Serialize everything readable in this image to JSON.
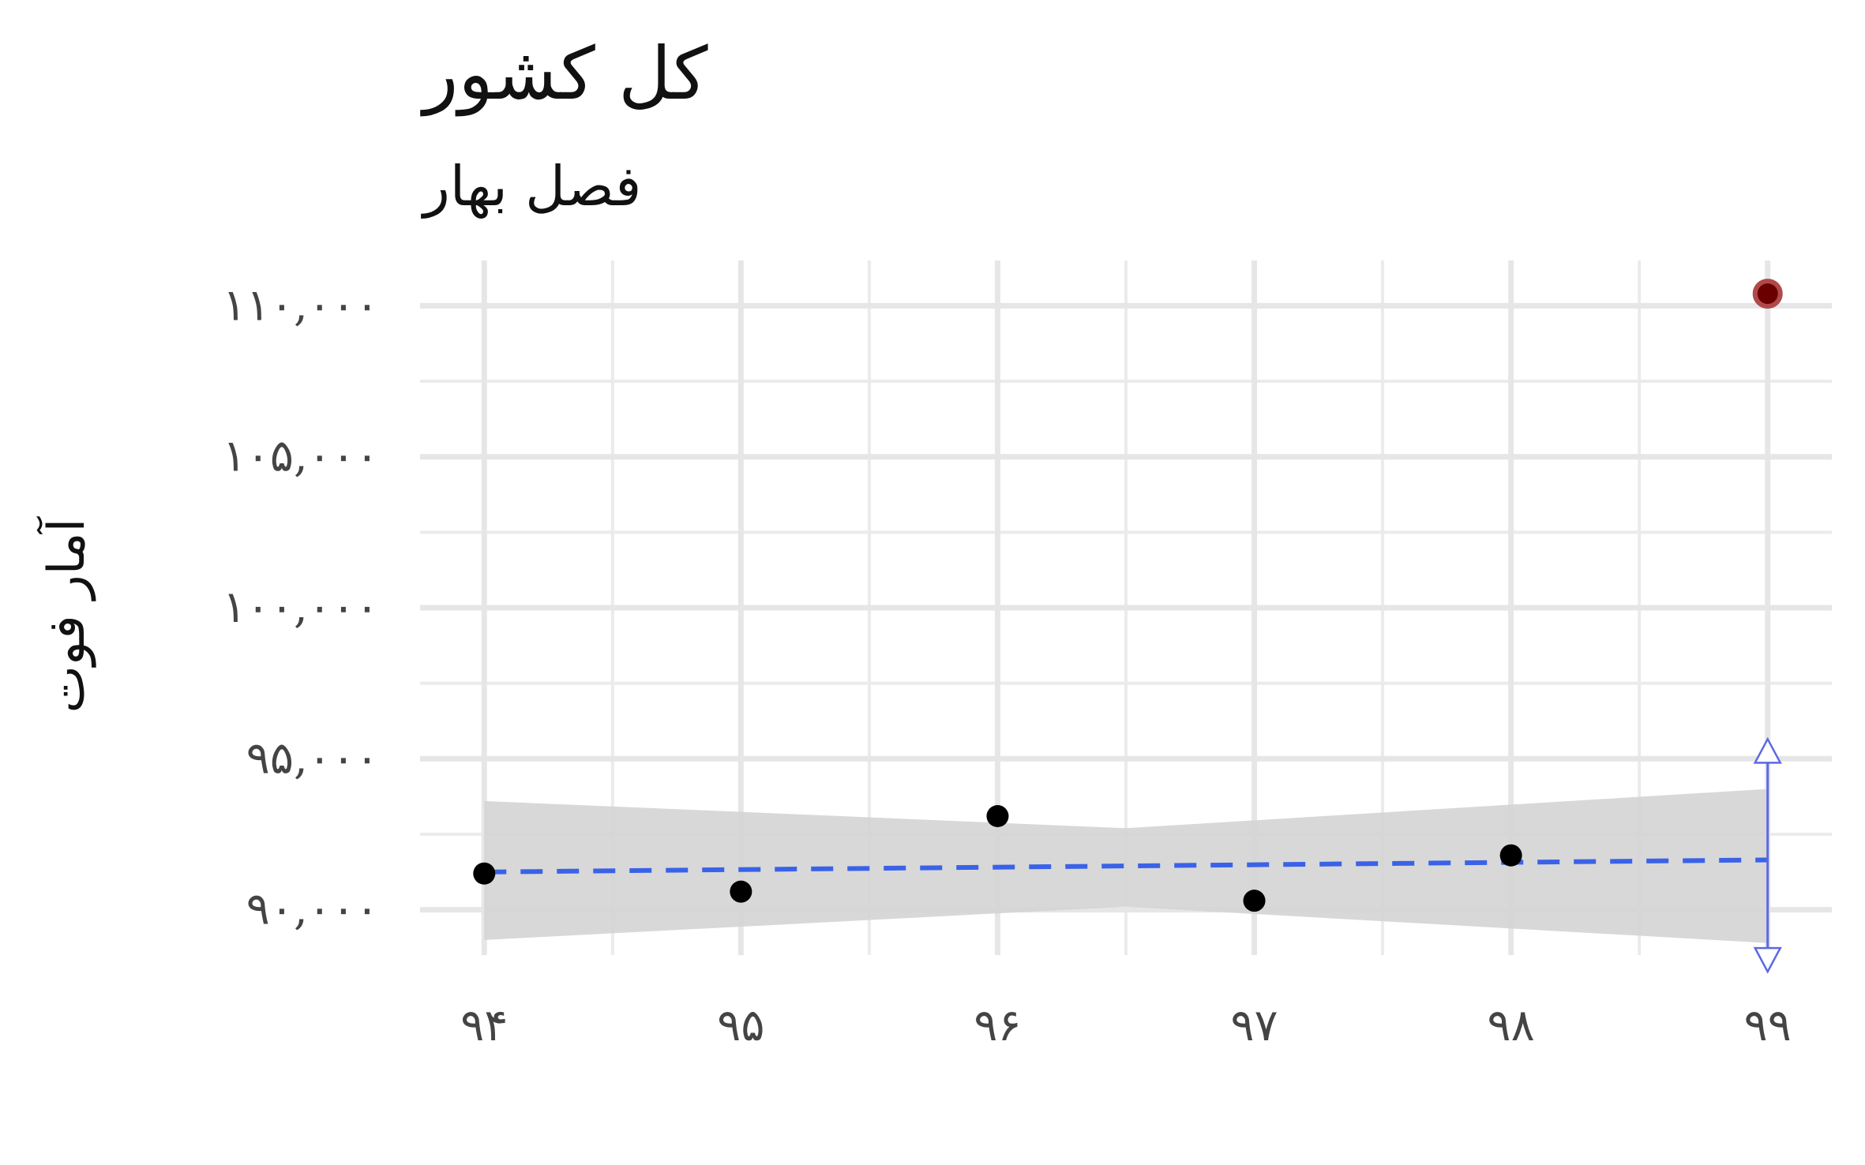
{
  "chart_data": {
    "type": "scatter",
    "title": "کل کشور",
    "subtitle": "فصل بهار",
    "xlabel": "",
    "ylabel": "آمار فوت",
    "x_ticks": [
      "۹۴",
      "۹۵",
      "۹۶",
      "۹۷",
      "۹۸",
      "۹۹"
    ],
    "y_ticks": [
      "۹۰,۰۰۰",
      "۹۵,۰۰۰",
      "۱۰۰,۰۰۰",
      "۱۰۵,۰۰۰",
      "۱۱۰,۰۰۰"
    ],
    "y_tick_values": [
      90000,
      95000,
      100000,
      105000,
      110000
    ],
    "x_tick_values": [
      94,
      95,
      96,
      97,
      98,
      99
    ],
    "xlim": [
      93.75,
      99.25
    ],
    "ylim": [
      88500,
      111500
    ],
    "grid": true,
    "observed": {
      "x": [
        94,
        95,
        96,
        97,
        98
      ],
      "y": [
        91200,
        90600,
        93100,
        90300,
        91800
      ],
      "color": "#000000"
    },
    "highlight": {
      "x": 99,
      "y": 110400,
      "color": "#6b0000"
    },
    "trend": {
      "x": [
        94,
        99
      ],
      "y": [
        91250,
        91650
      ],
      "color": "#3a62e8",
      "style": "dashed"
    },
    "confidence_band": {
      "x": [
        94,
        96.5,
        99
      ],
      "lower": [
        89000,
        90100,
        88900
      ],
      "upper": [
        93600,
        92700,
        94000
      ],
      "color": "#d4d4d4"
    },
    "prediction_interval": {
      "x": 99,
      "lower": 88000,
      "upper": 95600,
      "color": "#5a6ae0"
    }
  }
}
